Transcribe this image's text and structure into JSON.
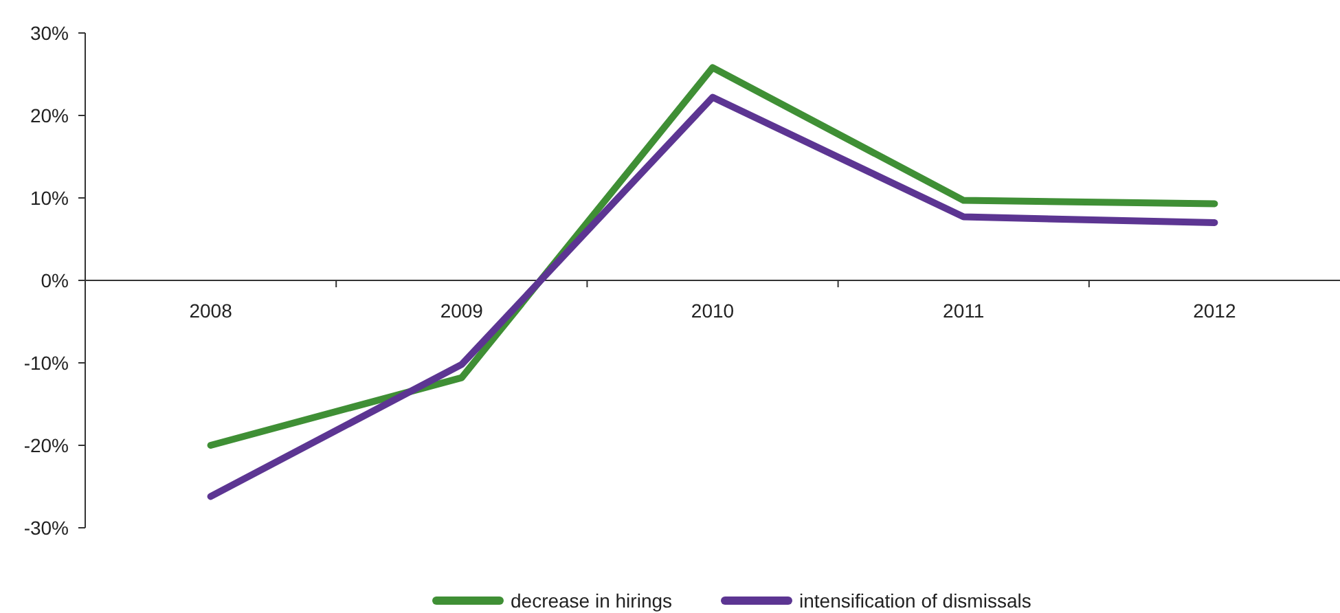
{
  "chart_data": {
    "type": "line",
    "categories": [
      "2008",
      "2009",
      "2010",
      "2011",
      "2012"
    ],
    "series": [
      {
        "name": "decrease in hirings",
        "color": "#3f8f35",
        "values": [
          -20,
          -11.8,
          25.8,
          9.7,
          9.3
        ]
      },
      {
        "name": "intensification of dismissals",
        "color": "#5c3592",
        "values": [
          -26.2,
          -10.2,
          22.2,
          7.7,
          7
        ]
      }
    ],
    "ylim": [
      -30,
      30
    ],
    "yticks": [
      {
        "value": -30,
        "label": "-30%"
      },
      {
        "value": -20,
        "label": "-20%"
      },
      {
        "value": -10,
        "label": "-10%"
      },
      {
        "value": 0,
        "label": "0%"
      },
      {
        "value": 10,
        "label": "10%"
      },
      {
        "value": 20,
        "label": "20%"
      },
      {
        "value": 30,
        "label": "30%"
      }
    ],
    "legend": "bottom",
    "marker": "none",
    "line_style": "solid",
    "grid": false
  }
}
